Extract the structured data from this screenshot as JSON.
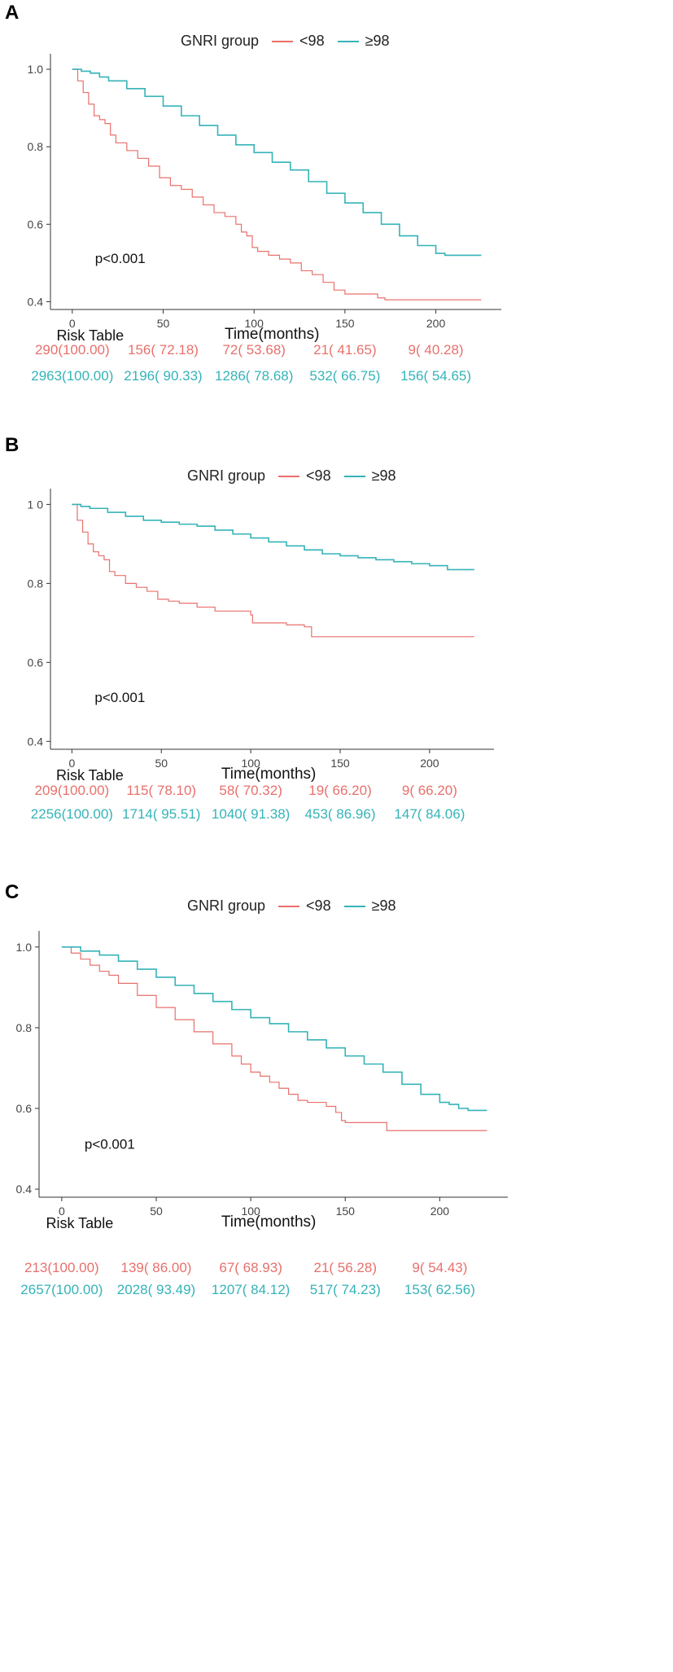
{
  "colors": {
    "low": "#e8706c",
    "high": "#35b3b8",
    "axis": "#333333"
  },
  "chart_data": [
    {
      "panel": "A",
      "type": "line",
      "title": "",
      "legend_title": "GNRI group",
      "series": [
        {
          "name": "<98",
          "x": [
            0,
            3,
            6,
            9,
            12,
            15,
            18,
            21,
            24,
            30,
            36,
            42,
            48,
            54,
            60,
            66,
            72,
            78,
            84,
            90,
            93,
            96,
            99,
            102,
            108,
            114,
            120,
            126,
            132,
            138,
            144,
            150,
            156,
            162,
            168,
            172,
            180,
            190,
            200,
            210,
            220,
            225
          ],
          "y": [
            1.0,
            0.97,
            0.94,
            0.91,
            0.88,
            0.87,
            0.86,
            0.83,
            0.81,
            0.79,
            0.77,
            0.75,
            0.72,
            0.7,
            0.69,
            0.67,
            0.65,
            0.63,
            0.62,
            0.6,
            0.58,
            0.57,
            0.54,
            0.53,
            0.52,
            0.51,
            0.5,
            0.48,
            0.47,
            0.45,
            0.43,
            0.42,
            0.42,
            0.42,
            0.41,
            0.405,
            0.405,
            0.405,
            0.405,
            0.405,
            0.405,
            0.405
          ]
        },
        {
          "name": "≥98",
          "x": [
            0,
            5,
            10,
            15,
            20,
            30,
            40,
            50,
            60,
            70,
            80,
            90,
            100,
            110,
            120,
            130,
            140,
            150,
            160,
            170,
            180,
            190,
            200,
            205,
            210,
            215,
            220,
            225
          ],
          "y": [
            1.0,
            0.995,
            0.99,
            0.98,
            0.97,
            0.95,
            0.93,
            0.905,
            0.88,
            0.855,
            0.83,
            0.805,
            0.785,
            0.76,
            0.74,
            0.71,
            0.68,
            0.655,
            0.63,
            0.6,
            0.57,
            0.545,
            0.525,
            0.52,
            0.52,
            0.52,
            0.52,
            0.52
          ]
        }
      ],
      "xlabel": "Time(months)",
      "ylabel": "",
      "xlim": [
        -12,
        236
      ],
      "ylim": [
        0.38,
        1.04
      ],
      "xticks": [
        0,
        50,
        100,
        150,
        200
      ],
      "yticks": [
        0.4,
        0.6,
        0.8,
        1.0
      ],
      "ytick_labels": [
        "0.4",
        "0.6",
        "0.8",
        "1.0"
      ],
      "annotation": "p<0.001",
      "risk_table": {
        "title": "Risk Table",
        "rows": [
          {
            "group": "<98",
            "cells": [
              "290(100.00)",
              "156( 72.18)",
              "72( 53.68)",
              "21( 41.65)",
              "9( 40.28)"
            ]
          },
          {
            "group": "≥98",
            "cells": [
              "2963(100.00)",
              "2196( 90.33)",
              "1286( 78.68)",
              "532( 66.75)",
              "156( 54.65)"
            ]
          }
        ]
      }
    },
    {
      "panel": "B",
      "type": "line",
      "title": "",
      "legend_title": "GNRI group",
      "series": [
        {
          "name": "<98",
          "x": [
            0,
            3,
            6,
            9,
            12,
            15,
            18,
            21,
            24,
            30,
            36,
            42,
            48,
            54,
            60,
            70,
            80,
            90,
            100,
            101,
            110,
            120,
            130,
            134,
            140,
            150,
            160,
            170,
            180,
            190,
            200,
            210,
            220,
            225
          ],
          "y": [
            1.0,
            0.96,
            0.93,
            0.9,
            0.88,
            0.87,
            0.86,
            0.83,
            0.82,
            0.8,
            0.79,
            0.78,
            0.76,
            0.755,
            0.75,
            0.74,
            0.73,
            0.73,
            0.72,
            0.7,
            0.7,
            0.695,
            0.69,
            0.665,
            0.665,
            0.665,
            0.665,
            0.665,
            0.665,
            0.665,
            0.665,
            0.665,
            0.665,
            0.665
          ]
        },
        {
          "name": "≥98",
          "x": [
            0,
            5,
            10,
            20,
            30,
            40,
            50,
            60,
            70,
            80,
            90,
            100,
            110,
            120,
            130,
            140,
            150,
            160,
            170,
            180,
            190,
            200,
            205,
            210,
            215,
            220,
            225
          ],
          "y": [
            1.0,
            0.995,
            0.99,
            0.98,
            0.97,
            0.96,
            0.955,
            0.95,
            0.945,
            0.935,
            0.925,
            0.915,
            0.905,
            0.895,
            0.885,
            0.875,
            0.87,
            0.865,
            0.86,
            0.855,
            0.85,
            0.845,
            0.845,
            0.835,
            0.835,
            0.835,
            0.835
          ]
        }
      ],
      "xlabel": "Time(months)",
      "ylabel": "",
      "xlim": [
        -12,
        236
      ],
      "ylim": [
        0.38,
        1.04
      ],
      "xticks": [
        0,
        50,
        100,
        150,
        200
      ],
      "yticks": [
        0.4,
        0.6,
        0.8,
        1.0
      ],
      "ytick_labels": [
        "0.4",
        "0.6",
        "0.8",
        "1 0"
      ],
      "annotation": "p<0.001",
      "risk_table": {
        "title": "Risk Table",
        "rows": [
          {
            "group": "<98",
            "cells": [
              "209(100.00)",
              "115( 78.10)",
              "58( 70.32)",
              "19( 66.20)",
              "9( 66.20)"
            ]
          },
          {
            "group": "≥98",
            "cells": [
              "2256(100.00)",
              "1714( 95.51)",
              "1040( 91.38)",
              "453( 86.96)",
              "147( 84.06)"
            ]
          }
        ]
      }
    },
    {
      "panel": "C",
      "type": "line",
      "title": "",
      "legend_title": "GNRI group",
      "series": [
        {
          "name": "<98",
          "x": [
            0,
            5,
            10,
            15,
            20,
            25,
            30,
            40,
            50,
            60,
            70,
            80,
            90,
            95,
            100,
            105,
            110,
            115,
            120,
            125,
            130,
            140,
            145,
            148,
            150,
            160,
            168,
            172,
            175,
            180,
            190,
            200,
            210,
            220,
            225
          ],
          "y": [
            1.0,
            0.985,
            0.97,
            0.955,
            0.94,
            0.93,
            0.91,
            0.88,
            0.85,
            0.82,
            0.79,
            0.76,
            0.73,
            0.71,
            0.69,
            0.68,
            0.665,
            0.65,
            0.635,
            0.62,
            0.615,
            0.605,
            0.59,
            0.57,
            0.565,
            0.565,
            0.565,
            0.545,
            0.545,
            0.545,
            0.545,
            0.545,
            0.545,
            0.545,
            0.545
          ]
        },
        {
          "name": "≥98",
          "x": [
            0,
            10,
            20,
            30,
            40,
            50,
            60,
            70,
            80,
            90,
            100,
            110,
            120,
            130,
            140,
            150,
            160,
            170,
            180,
            190,
            200,
            205,
            210,
            215,
            220,
            225
          ],
          "y": [
            1.0,
            0.99,
            0.98,
            0.965,
            0.945,
            0.925,
            0.905,
            0.885,
            0.865,
            0.845,
            0.825,
            0.81,
            0.79,
            0.77,
            0.75,
            0.73,
            0.71,
            0.69,
            0.66,
            0.635,
            0.615,
            0.61,
            0.6,
            0.595,
            0.595,
            0.595
          ]
        }
      ],
      "xlabel": "Time(months)",
      "ylabel": "",
      "xlim": [
        -12,
        236
      ],
      "ylim": [
        0.38,
        1.04
      ],
      "xticks": [
        0,
        50,
        100,
        150,
        200
      ],
      "yticks": [
        0.4,
        0.6,
        0.8,
        1.0
      ],
      "ytick_labels": [
        "0.4",
        "0.6",
        "0.8",
        "1.0"
      ],
      "annotation": "p<0.001",
      "risk_table": {
        "title": "Risk Table",
        "rows": [
          {
            "group": "<98",
            "cells": [
              "213(100.00)",
              "139( 86.00)",
              "67( 68.93)",
              "21( 56.28)",
              "9( 54.43)"
            ]
          },
          {
            "group": "≥98",
            "cells": [
              "2657(100.00)",
              "2028( 93.49)",
              "1207( 84.12)",
              "517( 74.23)",
              "153( 62.56)"
            ]
          }
        ]
      }
    }
  ]
}
